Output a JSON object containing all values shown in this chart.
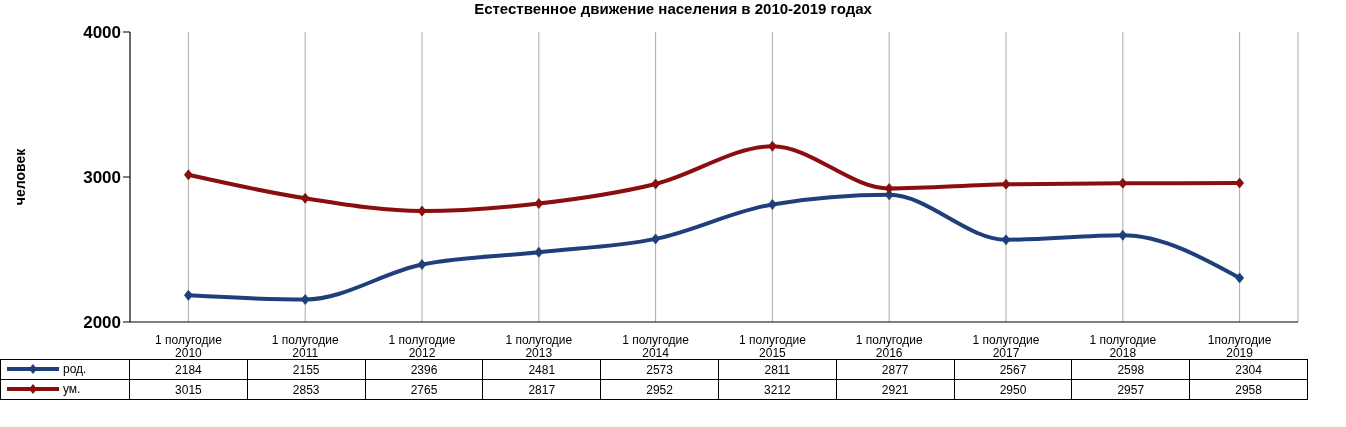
{
  "chart_data": {
    "type": "line",
    "title": "Естественное движение населения в 2010-2019 годах",
    "ylabel": "человек",
    "categories": [
      "1 полугодие 2010",
      "1 полугодие 2011",
      "1 полугодие 2012",
      "1 полугодие 2013",
      "1 полугодие 2014",
      "1 полугодие 2015",
      "1 полугодие 2016",
      "1 полугодие 2017",
      "1 полугодие 2018",
      "1полугодие 2019"
    ],
    "series": [
      {
        "name": "род.",
        "color": "#1f3f7a",
        "values": [
          2184,
          2155,
          2396,
          2481,
          2573,
          2811,
          2877,
          2567,
          2598,
          2304
        ]
      },
      {
        "name": "ум.",
        "color": "#8b0e0e",
        "values": [
          3015,
          2853,
          2765,
          2817,
          2952,
          3212,
          2921,
          2950,
          2957,
          2958
        ]
      }
    ],
    "ylim": [
      2000,
      4000
    ],
    "yticks": [
      2000,
      3000,
      4000
    ],
    "grid": "x",
    "legend": "bottom",
    "marker": "diamond",
    "line_style": "solid",
    "data_labels": true
  }
}
